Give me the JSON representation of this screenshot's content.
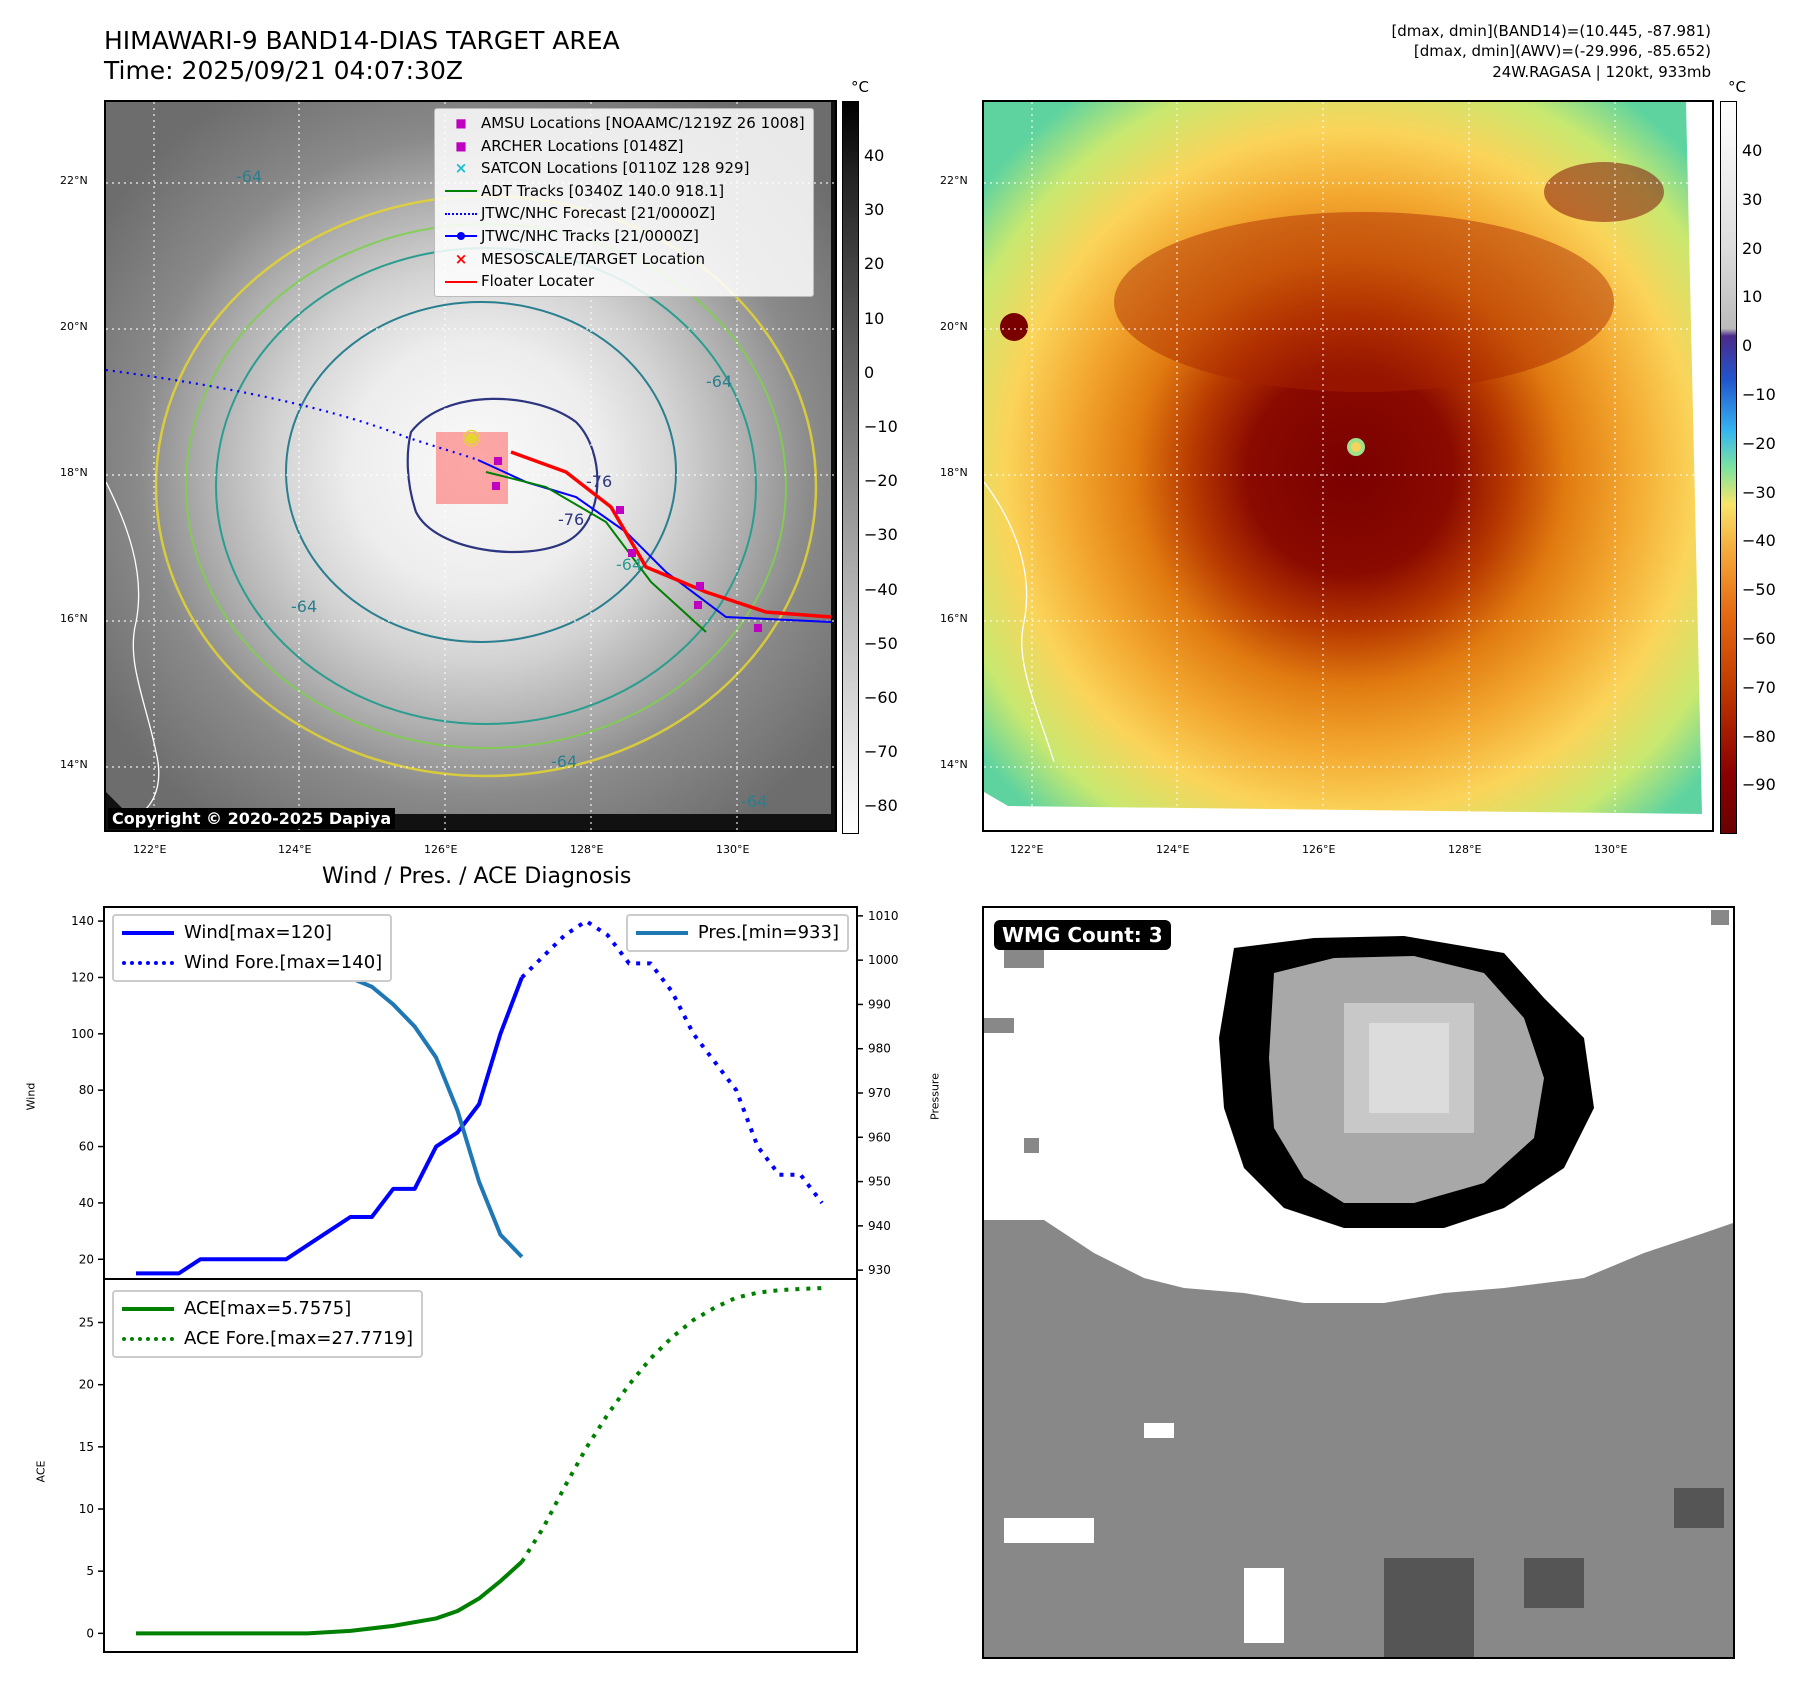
{
  "header": {
    "title_line1": "HIMAWARI-9 BAND14-DIAS TARGET AREA",
    "title_line2": "Time: 2025/09/21 04:07:30Z",
    "info_line1": "[dmax, dmin](BAND14)=(10.445, -87.981)",
    "info_line2": "[dmax, dmin](AWV)=(-29.996, -85.652)",
    "info_line3": "24W.RAGASA | 120kt, 933mb"
  },
  "map": {
    "lat_labels": [
      "22°N",
      "20°N",
      "18°N",
      "16°N",
      "14°N"
    ],
    "lon_labels": [
      "122°E",
      "124°E",
      "126°E",
      "128°E",
      "130°E"
    ],
    "copyright": "Copyright © 2020-2025 Dapiya",
    "colorbar_unit": "°C",
    "left_colorbar_ticks": [
      "40",
      "30",
      "20",
      "10",
      "0",
      "−10",
      "−20",
      "−30",
      "−40",
      "−50",
      "−60",
      "−70",
      "−80"
    ],
    "right_colorbar_ticks": [
      "40",
      "30",
      "20",
      "10",
      "0",
      "−10",
      "−20",
      "−30",
      "−40",
      "−50",
      "−60",
      "−70",
      "−80",
      "−90"
    ],
    "contour_labels": [
      "-64",
      "-64",
      "-64",
      "-64",
      "-76",
      "-76",
      "-64",
      "-64"
    ],
    "legend": [
      {
        "label": "AMSU Locations [NOAAMC/1219Z 26 1008]",
        "symbol": "square",
        "color": "#c000c0"
      },
      {
        "label": "ARCHER Locations [0148Z]",
        "symbol": "square",
        "color": "#c000c0"
      },
      {
        "label": "SATCON Locations [0110Z 128 929]",
        "symbol": "x",
        "color": "#17becf"
      },
      {
        "label": "ADT Tracks [0340Z 140.0 918.1]",
        "symbol": "line",
        "color": "#008000"
      },
      {
        "label": "JTWC/NHC Forecast [21/0000Z]",
        "symbol": "dotted",
        "color": "#0000ff"
      },
      {
        "label": "JTWC/NHC Tracks [21/0000Z]",
        "symbol": "dotline",
        "color": "#0000ff"
      },
      {
        "label": "MESOSCALE/TARGET Location",
        "symbol": "x",
        "color": "#ff0000"
      },
      {
        "label": "Floater Locater",
        "symbol": "line",
        "color": "#ff0000"
      }
    ]
  },
  "diagnosis": {
    "title": "Wind / Pres. / ACE Diagnosis",
    "wind_ylabel": "Wind",
    "pres_ylabel": "Pressure",
    "ace_ylabel": "ACE",
    "wmg_label": "WMG Count: 3"
  },
  "chart_data": [
    {
      "type": "line",
      "title": "Wind / Pres. / ACE Diagnosis",
      "ylabel": "Wind",
      "ylim": [
        13,
        145
      ],
      "yticks": [
        20,
        40,
        60,
        80,
        100,
        120,
        140
      ],
      "series": [
        {
          "name": "Wind[max=120]",
          "style": "solid",
          "color": "#0000ff",
          "x": [
            0,
            2,
            3,
            4,
            5,
            6,
            7,
            8,
            9,
            10,
            11,
            12,
            13,
            14,
            15,
            16,
            17,
            18
          ],
          "values": [
            15,
            15,
            20,
            20,
            20,
            20,
            20,
            25,
            30,
            35,
            35,
            45,
            45,
            60,
            65,
            75,
            100,
            120
          ]
        },
        {
          "name": "Wind Fore.[max=140]",
          "style": "dotted",
          "color": "#0000ff",
          "x": [
            18,
            20,
            21,
            22,
            23,
            24,
            25,
            26,
            27,
            28,
            29,
            30,
            31,
            32
          ],
          "values": [
            120,
            135,
            140,
            135,
            125,
            125,
            115,
            100,
            90,
            80,
            60,
            50,
            50,
            40
          ]
        }
      ]
    },
    {
      "type": "line",
      "ylabel": "Pressure",
      "ylim": [
        928,
        1012
      ],
      "yticks": [
        930,
        940,
        950,
        960,
        970,
        980,
        990,
        1000,
        1010
      ],
      "series": [
        {
          "name": "Pres.[min=933]",
          "style": "solid",
          "color": "#1f77b4",
          "x": [
            0,
            1,
            3,
            5,
            7,
            9,
            11,
            12,
            13,
            14,
            15,
            16,
            17,
            18
          ],
          "values": [
            1006,
            1006,
            1006,
            1004,
            1002,
            998,
            994,
            990,
            985,
            978,
            966,
            950,
            938,
            933
          ]
        }
      ]
    },
    {
      "type": "line",
      "ylabel": "ACE",
      "ylim": [
        -1.5,
        28.5
      ],
      "yticks": [
        0,
        5,
        10,
        15,
        20,
        25
      ],
      "series": [
        {
          "name": "ACE[max=5.7575]",
          "style": "solid",
          "color": "#008000",
          "x": [
            0,
            4,
            8,
            10,
            12,
            14,
            15,
            16,
            17,
            18
          ],
          "values": [
            0,
            0,
            0,
            0.2,
            0.6,
            1.2,
            1.8,
            2.8,
            4.2,
            5.7575
          ]
        },
        {
          "name": "ACE Fore.[max=27.7719]",
          "style": "dotted",
          "color": "#008000",
          "x": [
            18,
            19,
            20,
            21,
            22,
            23,
            24,
            25,
            26,
            27,
            28,
            29,
            30,
            31,
            32
          ],
          "values": [
            5.7575,
            8.5,
            11.8,
            14.9,
            17.6,
            20,
            22.1,
            23.8,
            25.2,
            26.2,
            27,
            27.4,
            27.6,
            27.7,
            27.7719
          ]
        }
      ]
    }
  ]
}
